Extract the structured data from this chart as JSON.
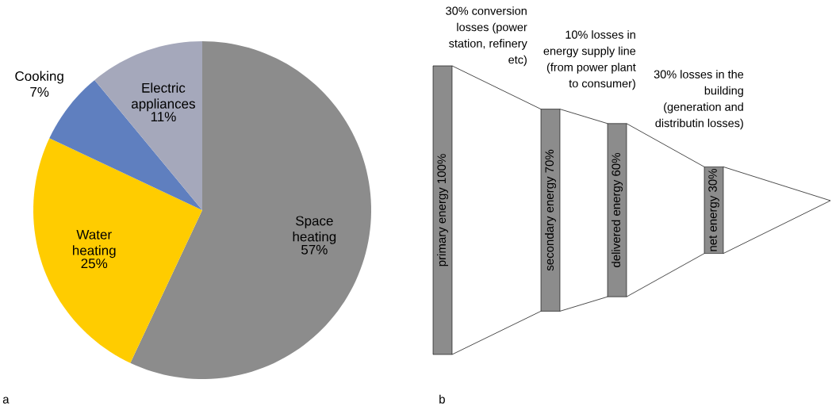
{
  "chart_data": [
    {
      "type": "pie",
      "categories": [
        "Space heating",
        "Water heating",
        "Cooking",
        "Electric appliances"
      ],
      "values": [
        57,
        25,
        7,
        11
      ],
      "value_labels": [
        "57%",
        "25%",
        "7%",
        "11%"
      ],
      "colors": [
        "#8c8c8c",
        "#ffcc00",
        "#5f7fbf",
        "#a5a8bb"
      ],
      "annotations": [
        "a"
      ]
    },
    {
      "type": "other",
      "categories": [
        "primary energy",
        "secondary energy",
        "delivered energy",
        "net energy"
      ],
      "values": [
        100,
        70,
        60,
        30
      ],
      "value_labels": [
        "100%",
        "70%",
        "60%",
        "30%"
      ],
      "color": "#8c8c8c",
      "annotations": [
        "b",
        "30% conversion losses (power station, refinery etc)",
        "10% losses in energy supply line (from power plant to consumer)",
        "30% losses in the building (generation and distributin losses)"
      ]
    }
  ]
}
